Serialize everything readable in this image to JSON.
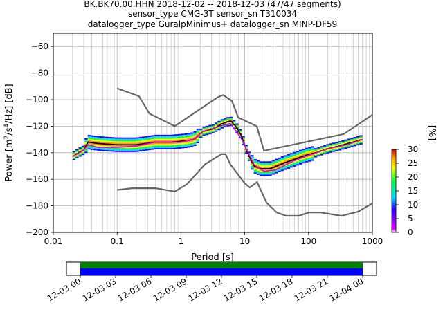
{
  "title_lines": [
    "BK.BK70.00.HHN   2018-12-02 -- 2018-12-03  (47/47 segments)",
    "sensor_type CMG-3T sensor_sn T310034",
    "datalogger_type GuralpMinimus+ datalogger_sn MINP-DF59"
  ],
  "chart_data": {
    "type": "line",
    "xlabel": "Period [s]",
    "ylabel": "Power [m²/s⁴/Hz] [dB]",
    "x_scale": "log",
    "xlim": [
      0.01,
      1000
    ],
    "ylim": [
      -200,
      -50
    ],
    "x_tick_labels": [
      "0.01",
      "0.1",
      "1",
      "10",
      "100",
      "1000"
    ],
    "y_ticks": [
      -60,
      -80,
      -100,
      -120,
      -140,
      -160,
      -180,
      -200
    ],
    "grid": true,
    "series": [
      {
        "role": "high-noise-model",
        "color": "#666666",
        "x": [
          0.1,
          0.22,
          0.32,
          0.8,
          3.8,
          4.6,
          6.3,
          7.9,
          15.4,
          20,
          354.8,
          1000
        ],
        "y": [
          -91.5,
          -97.4,
          -110.5,
          -120,
          -98,
          -96.5,
          -101,
          -113.5,
          -120,
          -138.5,
          -126,
          -111.5
        ]
      },
      {
        "role": "low-noise-model",
        "color": "#666666",
        "x": [
          0.1,
          0.17,
          0.4,
          0.8,
          1.24,
          2.4,
          4.3,
          5,
          6,
          10,
          12,
          15.6,
          21.9,
          31.6,
          45,
          70,
          101,
          154,
          328,
          600,
          1000
        ],
        "y": [
          -168,
          -166.7,
          -166.7,
          -169.2,
          -163.7,
          -148.6,
          -141.1,
          -141.1,
          -149,
          -163,
          -166.2,
          -162.1,
          -177.5,
          -185,
          -187.5,
          -187.5,
          -185,
          -185,
          -187.5,
          -184.4,
          -178
        ]
      },
      {
        "role": "mean",
        "color": "#000000",
        "x": [
          0.02,
          0.025,
          0.03,
          0.035,
          0.05,
          0.1,
          0.2,
          0.4,
          0.7,
          1.2,
          1.6,
          2.2,
          3.2,
          4.5,
          6,
          7.5,
          9,
          11,
          14,
          18,
          25,
          40,
          60,
          90,
          130,
          200,
          300,
          500,
          700
        ],
        "y": [
          -143,
          -140,
          -138,
          -132,
          -133,
          -134,
          -134,
          -132,
          -132,
          -131,
          -130,
          -124,
          -122,
          -118,
          -116,
          -121,
          -128,
          -140,
          -150,
          -152,
          -152,
          -148,
          -145,
          -142,
          -140,
          -137,
          -135,
          -132,
          -130
        ]
      },
      {
        "role": "mode",
        "color": "#d400ff",
        "x": [
          0.02,
          0.03,
          0.035,
          0.05,
          0.1,
          0.2,
          0.4,
          1.0,
          1.6,
          2.2,
          4,
          6,
          9,
          14,
          20,
          30,
          60,
          100,
          200,
          400,
          700
        ],
        "y": [
          -143,
          -138,
          -134,
          -136,
          -136,
          -135,
          -132,
          -132,
          -130,
          -124,
          -120,
          -118,
          -130,
          -149,
          -154,
          -153,
          -146,
          -142,
          -137,
          -134,
          -130
        ]
      }
    ],
    "colorbar": {
      "label": "[%]",
      "ticks": [
        0,
        5,
        10,
        15,
        20,
        25,
        30
      ],
      "colormap": [
        "#ffffff",
        "#e600ff",
        "#1f00ff",
        "#00d8ff",
        "#00ff3c",
        "#f5ff00",
        "#ff9a00",
        "#cc0000"
      ]
    },
    "coverage": {
      "tick_labels": [
        "12-03 00",
        "12-03 03",
        "12-03 06",
        "12-03 09",
        "12-03 12",
        "12-03 15",
        "12-03 18",
        "12-03 21",
        "12-04 00"
      ],
      "green_color": "#008000",
      "blue_color": "#0000ff"
    }
  }
}
